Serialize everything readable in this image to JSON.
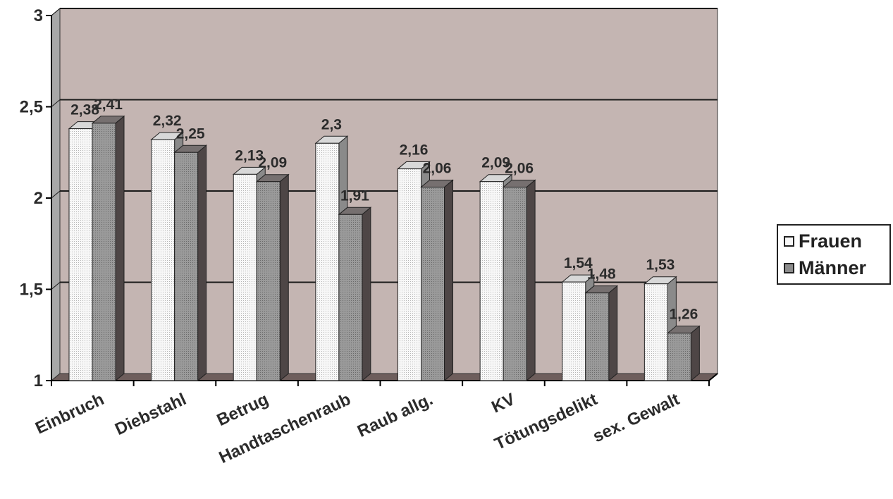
{
  "chart_data": {
    "type": "bar",
    "title": "",
    "xlabel": "",
    "ylabel": "",
    "ylim": [
      1,
      3
    ],
    "yticks": [
      "1",
      "1,5",
      "2",
      "2,5",
      "3"
    ],
    "ytick_values": [
      1,
      1.5,
      2,
      2.5,
      3
    ],
    "grid": true,
    "legend_position": "right",
    "categories": [
      "Einbruch",
      "Diebstahl",
      "Betrug",
      "Handtaschenraub",
      "Raub allg.",
      "KV",
      "Tötungsdelikt",
      "sex. Gewalt"
    ],
    "series": [
      {
        "name": "Frauen",
        "color": "#ffffff",
        "values": [
          2.38,
          2.32,
          2.13,
          2.3,
          2.16,
          2.09,
          1.54,
          1.53
        ],
        "labels": [
          "2,38",
          "2,32",
          "2,13",
          "2,3",
          "2,16",
          "2,09",
          "1,54",
          "1,53"
        ]
      },
      {
        "name": "Männer",
        "color": "#8c8c8c",
        "values": [
          2.41,
          2.25,
          2.09,
          1.91,
          2.06,
          2.06,
          1.48,
          1.26
        ],
        "labels": [
          "2,41",
          "2,25",
          "2,09",
          "1,91",
          "2,06",
          "2,06",
          "1,48",
          "1,26"
        ]
      }
    ],
    "colors": {
      "wall": "#c4b5b2",
      "floor": "#6e5e5c",
      "grid": "#1a1a1a"
    }
  }
}
